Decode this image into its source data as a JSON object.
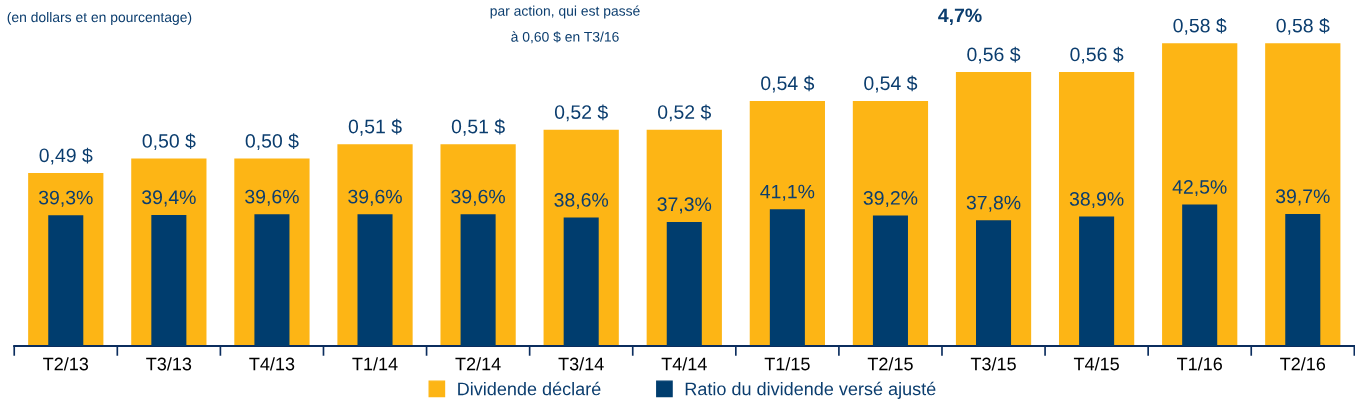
{
  "chart_data": {
    "type": "bar",
    "subtitle": "(en dollars et en pourcentage)",
    "annotations": [
      "par action, qui est passé",
      "à 0,60 $ en T3/16",
      "4,7%"
    ],
    "categories": [
      "T2/13",
      "T3/13",
      "T4/13",
      "T1/14",
      "T2/14",
      "T3/14",
      "T4/14",
      "T1/15",
      "T2/15",
      "T3/15",
      "T4/15",
      "T1/16",
      "T2/16"
    ],
    "series": [
      {
        "name": "Dividende déclaré",
        "color": "#fdb515",
        "values": [
          0.49,
          0.5,
          0.5,
          0.51,
          0.51,
          0.52,
          0.52,
          0.54,
          0.54,
          0.56,
          0.56,
          0.58,
          0.58
        ],
        "value_labels": [
          "0,49 $",
          "0,50 $",
          "0,50 $",
          "0,51 $",
          "0,51 $",
          "0,52 $",
          "0,52 $",
          "0,54 $",
          "0,54 $",
          "0,56 $",
          "0,56 $",
          "0,58 $",
          "0,58 $"
        ]
      },
      {
        "name": "Ratio du dividende versé ajusté",
        "color": "#003d6e",
        "axis": "y2",
        "values": [
          39.3,
          39.4,
          39.6,
          39.6,
          39.6,
          38.6,
          37.3,
          41.1,
          39.2,
          37.8,
          38.9,
          42.5,
          39.7
        ],
        "value_labels": [
          "39,3%",
          "39,4%",
          "39,6%",
          "39,6%",
          "39,6%",
          "38,6%",
          "37,3%",
          "41,1%",
          "39,2%",
          "37,8%",
          "38,9%",
          "42,5%",
          "39,7%"
        ]
      }
    ],
    "ylim": [
      0.37,
      0.61
    ],
    "y2lim": [
      0,
      104
    ],
    "tick_labels": "x",
    "legend": "bottom",
    "grid": false
  }
}
